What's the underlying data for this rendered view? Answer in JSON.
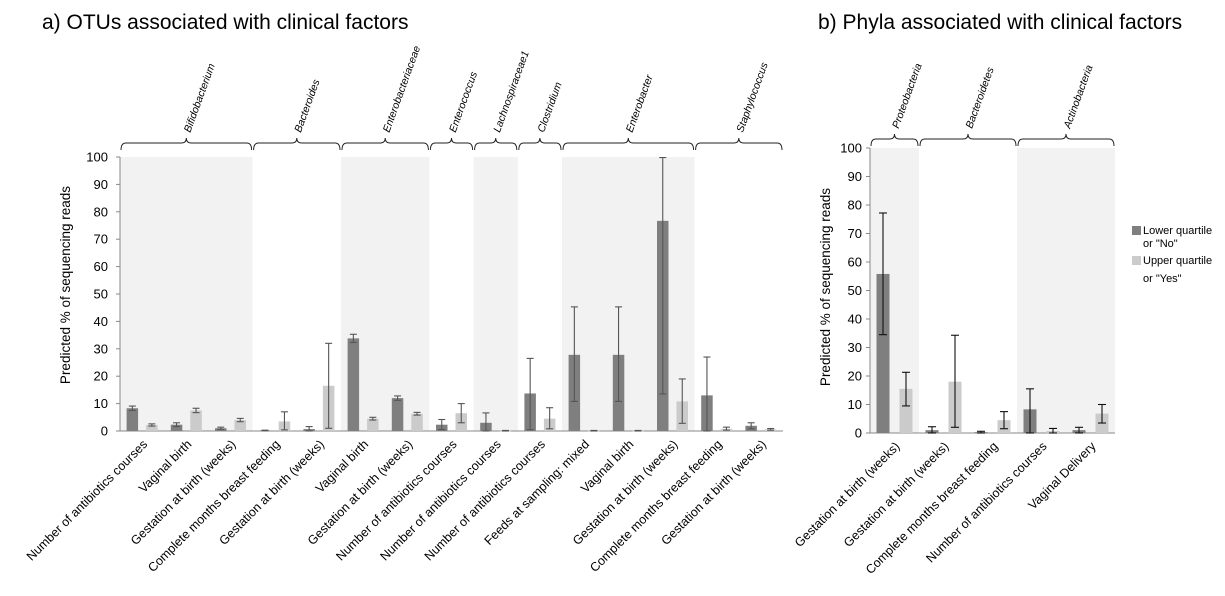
{
  "colors": {
    "lower": "#7f7f7f",
    "upper": "#cbcbcb",
    "shade": "#f2f2f2"
  },
  "legend": {
    "lower_line1": "Lower quartile",
    "lower_line2": "or \"No\"",
    "upper_line1": "Upper quartile",
    "upper_line2": "or \"Yes\""
  },
  "chart_data": [
    {
      "type": "bar",
      "title": "a) OTUs associated with clinical factors",
      "ylabel": "Predicted % of sequencing reads",
      "ylim": [
        0,
        100
      ],
      "yticks": [
        0,
        10,
        20,
        30,
        40,
        50,
        60,
        70,
        80,
        90,
        100
      ],
      "groups": [
        {
          "name": "Bifidobacterium",
          "start": 0,
          "end": 3,
          "shaded": true
        },
        {
          "name": "Bacteroides",
          "start": 3,
          "end": 5,
          "shaded": false
        },
        {
          "name": "Enterobacteriaceae",
          "start": 5,
          "end": 7,
          "shaded": true
        },
        {
          "name": "Enterococcus",
          "start": 7,
          "end": 8,
          "shaded": false
        },
        {
          "name": "Lachnospiraceae1",
          "start": 8,
          "end": 9,
          "shaded": true
        },
        {
          "name": "Clostridium",
          "start": 9,
          "end": 10,
          "shaded": false
        },
        {
          "name": "Enterobacter",
          "start": 10,
          "end": 13,
          "shaded": true
        },
        {
          "name": "Staphylococcus",
          "start": 13,
          "end": 15,
          "shaded": false
        }
      ],
      "categories": [
        "Number of antibiotics courses",
        "Vaginal birth",
        "Gestation at birth (weeks)",
        "Complete months breast feeding",
        "Gestation at birth (weeks)",
        "Vaginal birth",
        "Gestation at birth (weeks)",
        "Number of antibiotics courses",
        "Number of antibiotics courses",
        "Number of antibiotics courses",
        "Feeds at sampling: mixed",
        "Vaginal birth",
        "Gestation at birth (weeks)",
        "Complete months breast feeding",
        "Gestation at birth (weeks)"
      ],
      "series": [
        {
          "name": "Lower quartile or \"No\"",
          "values": [
            8.3,
            2.3,
            1.0,
            0.2,
            0.7,
            33.8,
            12.0,
            2.3,
            3.0,
            13.7,
            27.8,
            27.8,
            76.7,
            13.0,
            1.9
          ],
          "err_low": [
            7.5,
            1.6,
            0.6,
            0.1,
            0.0,
            32.3,
            11.2,
            0.5,
            0.0,
            0.5,
            10.8,
            10.8,
            13.5,
            0.0,
            0.8
          ],
          "err_high": [
            9.1,
            3.0,
            1.4,
            0.3,
            1.6,
            35.3,
            12.8,
            4.2,
            6.6,
            26.5,
            45.3,
            45.3,
            99.8,
            27.0,
            3.0
          ]
        },
        {
          "name": "Upper quartile or \"Yes\"",
          "values": [
            2.2,
            7.5,
            4.0,
            3.5,
            16.5,
            4.5,
            6.3,
            6.5,
            0.1,
            4.5,
            0.1,
            0.1,
            10.8,
            0.8,
            0.6
          ],
          "err_low": [
            1.8,
            6.7,
            3.4,
            0.4,
            1.0,
            4.0,
            5.8,
            3.0,
            0.0,
            0.8,
            0.0,
            0.0,
            2.8,
            0.3,
            0.3
          ],
          "err_high": [
            2.6,
            8.3,
            4.6,
            7.0,
            32.0,
            5.0,
            6.8,
            10.0,
            0.2,
            8.5,
            0.2,
            0.2,
            19.0,
            1.4,
            0.9
          ]
        }
      ]
    },
    {
      "type": "bar",
      "title": "b) Phyla associated with clinical factors",
      "ylabel": "Predicted % of sequencing reads",
      "ylim": [
        0,
        100
      ],
      "yticks": [
        0,
        10,
        20,
        30,
        40,
        50,
        60,
        70,
        80,
        90,
        100
      ],
      "groups": [
        {
          "name": "Proteobacteria",
          "start": 0,
          "end": 1,
          "shaded": true
        },
        {
          "name": "Bacteroidetes",
          "start": 1,
          "end": 3,
          "shaded": false
        },
        {
          "name": "Actinobacteria",
          "start": 3,
          "end": 5,
          "shaded": true
        }
      ],
      "categories": [
        "Gestation at birth (weeks)",
        "Gestation at birth (weeks)",
        "Complete months breast feeding",
        "Number of antibiotics courses",
        "Vaginal Delivery"
      ],
      "series": [
        {
          "name": "Lower quartile or \"No\"",
          "values": [
            55.8,
            1.0,
            0.3,
            8.3,
            1.0
          ],
          "err_low": [
            34.5,
            0.0,
            0.0,
            0.0,
            0.0
          ],
          "err_high": [
            77.2,
            2.2,
            0.6,
            15.5,
            2.0
          ]
        },
        {
          "name": "Upper quartile or \"Yes\"",
          "values": [
            15.5,
            18.0,
            4.5,
            0.7,
            6.8
          ],
          "err_low": [
            9.5,
            2.0,
            1.5,
            0.0,
            3.5
          ],
          "err_high": [
            21.3,
            34.3,
            7.5,
            1.6,
            10.0
          ]
        }
      ]
    }
  ]
}
